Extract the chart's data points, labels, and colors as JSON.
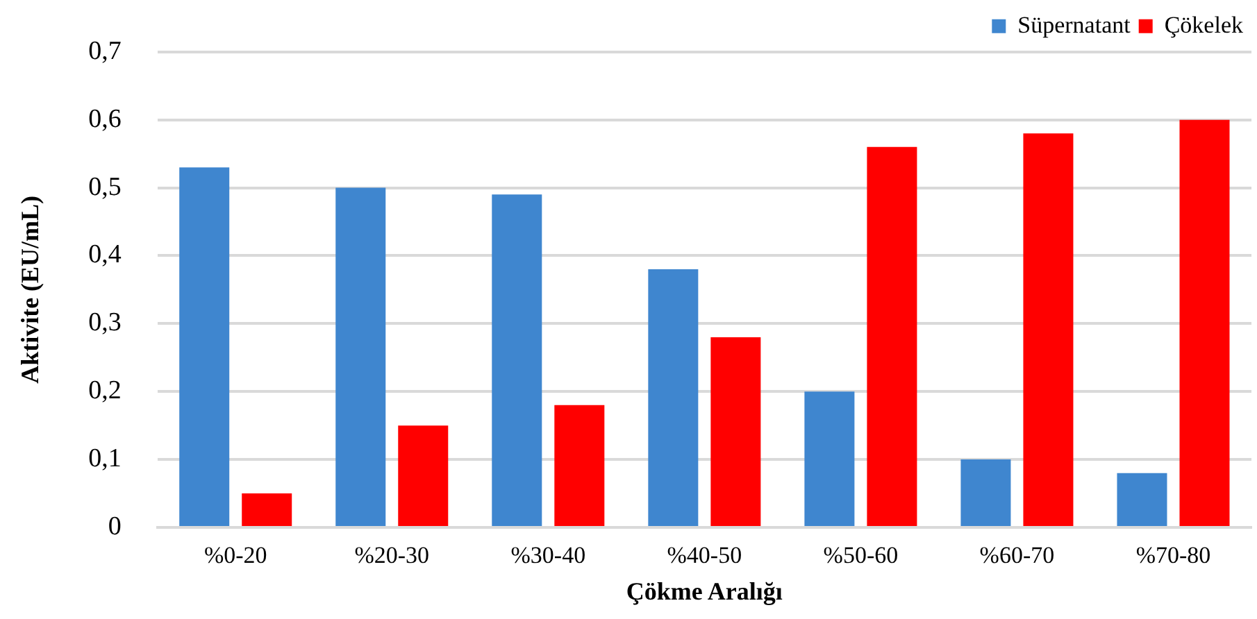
{
  "chart_data": {
    "type": "bar",
    "xlabel": "Çökme Aralığı",
    "ylabel": "Aktivite (EU/mL)",
    "categories": [
      "%0-20",
      "%20-30",
      "%30-40",
      "%40-50",
      "%50-60",
      "%60-70",
      "%70-80"
    ],
    "series": [
      {
        "name": "Süpernatant",
        "color": "#3f86cf",
        "values": [
          0.53,
          0.5,
          0.49,
          0.38,
          0.2,
          0.1,
          0.08
        ]
      },
      {
        "name": "Çökelek",
        "color": "#ff0000",
        "values": [
          0.05,
          0.15,
          0.18,
          0.28,
          0.56,
          0.58,
          0.6
        ]
      }
    ],
    "ylim": [
      0,
      0.7
    ],
    "yticks": [
      {
        "value": 0,
        "label": "0"
      },
      {
        "value": 0.1,
        "label": "0,1"
      },
      {
        "value": 0.2,
        "label": "0,2"
      },
      {
        "value": 0.3,
        "label": "0,3"
      },
      {
        "value": 0.4,
        "label": "0,4"
      },
      {
        "value": 0.5,
        "label": "0,5"
      },
      {
        "value": 0.6,
        "label": "0,6"
      },
      {
        "value": 0.7,
        "label": "0,7"
      }
    ],
    "grid": "y",
    "legend": "top right"
  }
}
